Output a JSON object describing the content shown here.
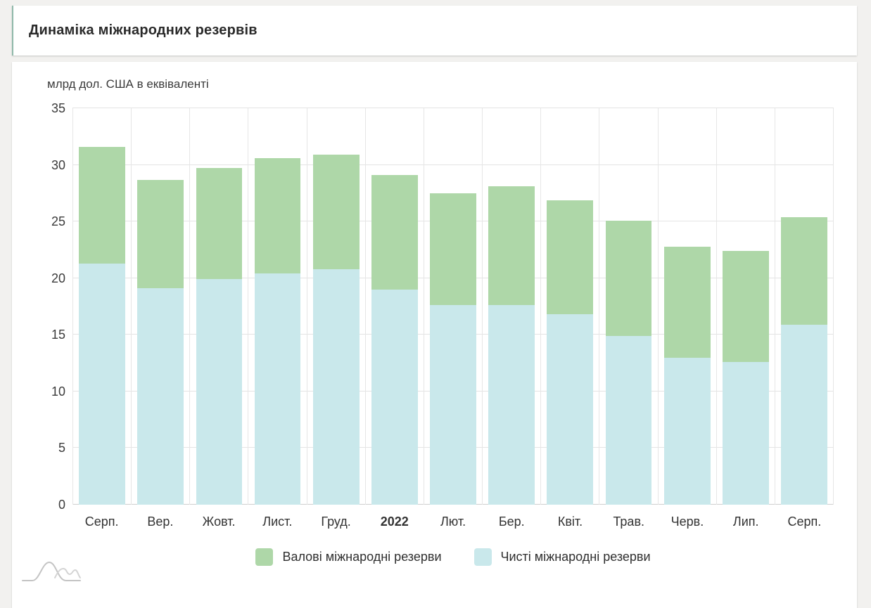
{
  "header": {
    "title": "Динаміка міжнародних резервів"
  },
  "colors": {
    "gross_green": "#aed7a8",
    "net_blue": "#c9e8eb",
    "card_accent": "#8fb9aa",
    "gridline": "#e4e4e4",
    "page_background": "#f2f1ef"
  },
  "icons": {
    "watermark": "hills-wave-logo-icon"
  },
  "chart_data": {
    "type": "bar",
    "stacked": true,
    "title": "Динаміка міжнародних резервів",
    "unit_label": "млрд дол. США в еквіваленті",
    "categories": [
      "Серп.",
      "Вер.",
      "Жовт.",
      "Лист.",
      "Груд.",
      "2022",
      "Лют.",
      "Бер.",
      "Квіт.",
      "Трав.",
      "Черв.",
      "Лип.",
      "Серп."
    ],
    "bold_category": "2022",
    "series": [
      {
        "name": "Валові міжнародні резерви",
        "color": "#aed7a8",
        "role": "total bar height (gross reserves)",
        "values": [
          31.6,
          28.7,
          29.7,
          30.6,
          30.9,
          29.1,
          27.5,
          28.1,
          26.9,
          25.1,
          22.8,
          22.4,
          25.4
        ]
      },
      {
        "name": "Чисті міжнародні резерви",
        "color": "#c9e8eb",
        "role": "lower segment from baseline (net reserves)",
        "values": [
          21.3,
          19.1,
          19.9,
          20.4,
          20.8,
          19.0,
          17.6,
          17.6,
          16.8,
          14.9,
          13.0,
          12.6,
          15.9
        ]
      }
    ],
    "ylim": [
      0,
      35
    ],
    "yticks": [
      0,
      5,
      10,
      15,
      20,
      25,
      30,
      35
    ],
    "grid": true,
    "legend_position": "bottom"
  }
}
